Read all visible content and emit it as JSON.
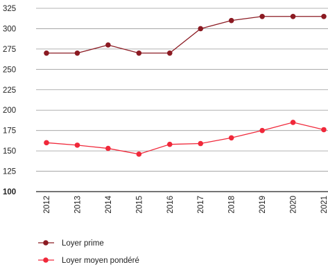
{
  "chart_data": {
    "type": "line",
    "categories": [
      "2012",
      "2013",
      "2014",
      "2015",
      "2016",
      "2017",
      "2018",
      "2019",
      "2020",
      "2021"
    ],
    "series": [
      {
        "name": "Loyer prime",
        "color": "#8B1A22",
        "values": [
          270,
          270,
          280,
          270,
          270,
          300,
          310,
          315,
          315,
          315
        ]
      },
      {
        "name": "Loyer moyen pondéré",
        "color": "#F0283A",
        "values": [
          160,
          157,
          153,
          146,
          158,
          159,
          166,
          175,
          185,
          176
        ]
      }
    ],
    "ylim": [
      100,
      325
    ],
    "yticks": [
      "100",
      "125",
      "150",
      "175",
      "200",
      "225",
      "250",
      "275",
      "300",
      "325"
    ],
    "grid": true,
    "legend_position": "bottom-left",
    "title": "",
    "xlabel": "",
    "ylabel": ""
  }
}
